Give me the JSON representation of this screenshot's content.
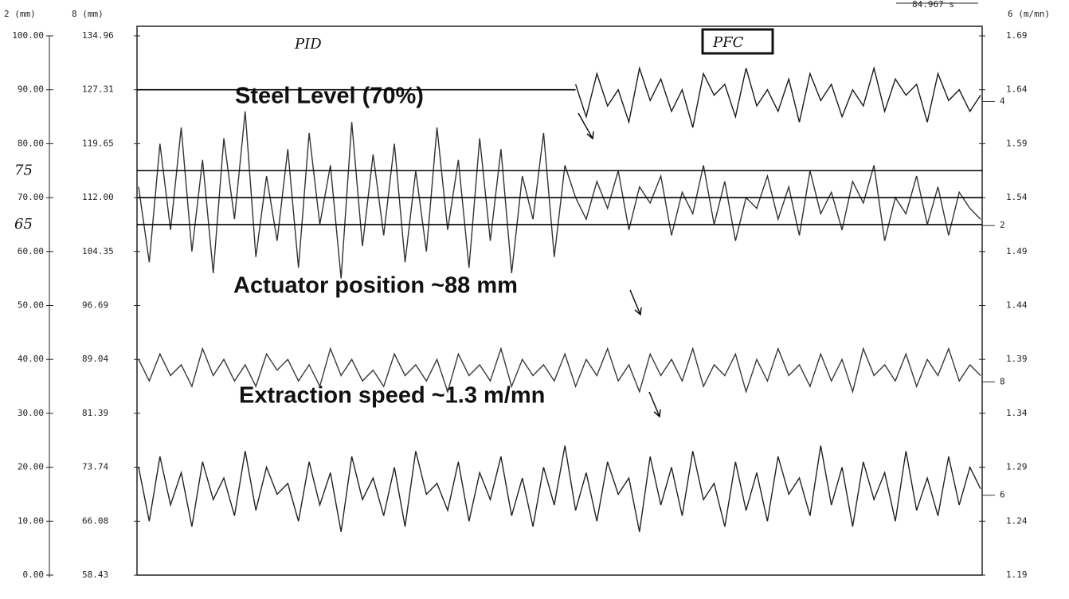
{
  "chart_data": {
    "type": "line",
    "y_label": "2 (mm)",
    "y2_label": "8 (mm)",
    "y3_label": "6 (m/mn)",
    "time_span": "84.967 s",
    "ylim": [
      0,
      100
    ],
    "yticks": [
      {
        "value": 0,
        "label": "0.00"
      },
      {
        "value": 10,
        "label": "10.00"
      },
      {
        "value": 20,
        "label": "20.00"
      },
      {
        "value": 30,
        "label": "30.00"
      },
      {
        "value": 40,
        "label": "40.00"
      },
      {
        "value": 50,
        "label": "50.00"
      },
      {
        "value": 60,
        "label": "60.00"
      },
      {
        "value": 70,
        "label": "70.00"
      },
      {
        "value": 80,
        "label": "80.00"
      },
      {
        "value": 90,
        "label": "90.00"
      },
      {
        "value": 100,
        "label": "100.00"
      }
    ],
    "y2lim": [
      58.43,
      134.96
    ],
    "y2ticks": [
      58.43,
      66.08,
      73.74,
      81.39,
      89.04,
      96.69,
      104.35,
      {
        "value": 112.0,
        "label": "112.00"
      },
      119.65,
      127.31,
      134.96
    ],
    "y3lim": [
      1.19,
      1.69
    ],
    "y3ticks": [
      1.19,
      1.24,
      1.29,
      1.34,
      1.39,
      1.44,
      1.49,
      1.54,
      1.59,
      1.64,
      1.69
    ],
    "reference_lines": [
      90,
      75,
      70,
      65
    ],
    "hand_labels": [
      "75",
      "65"
    ],
    "modes": [
      "PID",
      "PFC"
    ],
    "annotations": [
      "Steel Level (70%)",
      "Actuator position ~88 mm",
      "Extraction speed ~1.3 m/mn"
    ],
    "series": [
      {
        "name": "4",
        "color": "#1a1a1a",
        "values": [
          null,
          null,
          null,
          null,
          null,
          null,
          null,
          null,
          null,
          null,
          null,
          null,
          null,
          null,
          null,
          null,
          null,
          null,
          null,
          null,
          null,
          null,
          null,
          null,
          null,
          null,
          null,
          null,
          null,
          null,
          null,
          null,
          null,
          null,
          null,
          null,
          null,
          null,
          null,
          null,
          null,
          91,
          85,
          93,
          87,
          90,
          84,
          94,
          88,
          92,
          86,
          90,
          83,
          93,
          89,
          91,
          85,
          94,
          87,
          90,
          86,
          92,
          84,
          93,
          88,
          91,
          85,
          90,
          87,
          94,
          86,
          92,
          89,
          91,
          84,
          93,
          88,
          90,
          86,
          89
        ]
      },
      {
        "name": "2",
        "color": "#333333",
        "values": [
          72,
          58,
          80,
          64,
          83,
          60,
          77,
          56,
          81,
          66,
          86,
          59,
          74,
          62,
          79,
          57,
          82,
          65,
          76,
          55,
          84,
          61,
          78,
          63,
          80,
          58,
          75,
          60,
          83,
          64,
          77,
          57,
          81,
          62,
          79,
          56,
          74,
          66,
          82,
          59,
          76,
          70,
          66,
          73,
          68,
          75,
          64,
          72,
          69,
          74,
          63,
          71,
          67,
          76,
          65,
          73,
          62,
          70,
          68,
          74,
          66,
          72,
          63,
          75,
          67,
          71,
          64,
          73,
          69,
          76,
          62,
          70,
          67,
          74,
          65,
          72,
          63,
          71,
          68,
          66
        ]
      },
      {
        "name": "8",
        "color": "#3a3a3a",
        "values": [
          40,
          36,
          41,
          37,
          39,
          35,
          42,
          37,
          40,
          36,
          39,
          35,
          41,
          38,
          40,
          36,
          39,
          35,
          42,
          37,
          40,
          36,
          38,
          35,
          41,
          37,
          39,
          36,
          40,
          34,
          41,
          37,
          39,
          36,
          42,
          35,
          40,
          37,
          39,
          36,
          41,
          35,
          40,
          37,
          42,
          36,
          39,
          34,
          41,
          37,
          40,
          36,
          42,
          35,
          39,
          37,
          41,
          34,
          40,
          36,
          42,
          37,
          39,
          35,
          41,
          36,
          40,
          34,
          42,
          37,
          39,
          36,
          41,
          35,
          40,
          37,
          42,
          36,
          39,
          37
        ]
      },
      {
        "name": "6",
        "color": "#222222",
        "values": [
          20,
          10,
          22,
          13,
          19,
          9,
          21,
          14,
          18,
          11,
          23,
          12,
          20,
          15,
          17,
          10,
          21,
          13,
          19,
          8,
          22,
          14,
          18,
          11,
          20,
          9,
          23,
          15,
          17,
          12,
          21,
          10,
          19,
          14,
          22,
          11,
          18,
          9,
          20,
          13,
          24,
          12,
          19,
          10,
          21,
          15,
          18,
          8,
          22,
          13,
          20,
          11,
          23,
          14,
          17,
          9,
          21,
          12,
          19,
          10,
          22,
          15,
          18,
          11,
          24,
          13,
          20,
          9,
          21,
          14,
          19,
          10,
          23,
          12,
          18,
          11,
          22,
          13,
          20,
          16
        ]
      }
    ]
  }
}
